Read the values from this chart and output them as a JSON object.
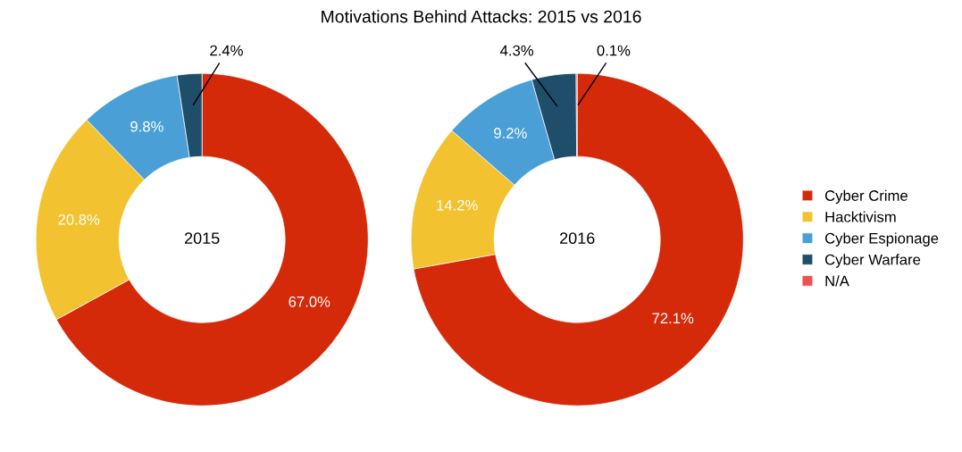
{
  "chart_data": [
    {
      "type": "donut",
      "annotations": [
        "2015"
      ],
      "categories": [
        null,
        null,
        null,
        null
      ],
      "values": [
        67.0,
        20.8,
        9.8,
        2.4
      ],
      "value_labels": [
        "67.0%",
        "20.8%",
        "9.8%",
        "2.4%"
      ],
      "colors": [
        "#d42a0a",
        "#f2c230",
        "#4a9fd6",
        "#1f4e6b"
      ]
    },
    {
      "type": "donut",
      "title": "Motivations Behind Attacks: 2015 vs 2016",
      "annotations": [
        "2016"
      ],
      "categories": [
        "Cyber Crime",
        "Hacktivism",
        "Cyber Espionage",
        "Cyber Warfare",
        "N/A"
      ],
      "values": [
        72.1,
        14.2,
        9.2,
        4.3,
        0.1
      ],
      "value_labels": [
        "72.1%",
        "14.2%",
        "9.2%",
        "4.3%",
        "0.1%"
      ],
      "colors": [
        "#d42a0a",
        "#f2c230",
        "#4a9fd6",
        "#1f4e6b",
        "#f05050"
      ],
      "legend": "right"
    }
  ]
}
